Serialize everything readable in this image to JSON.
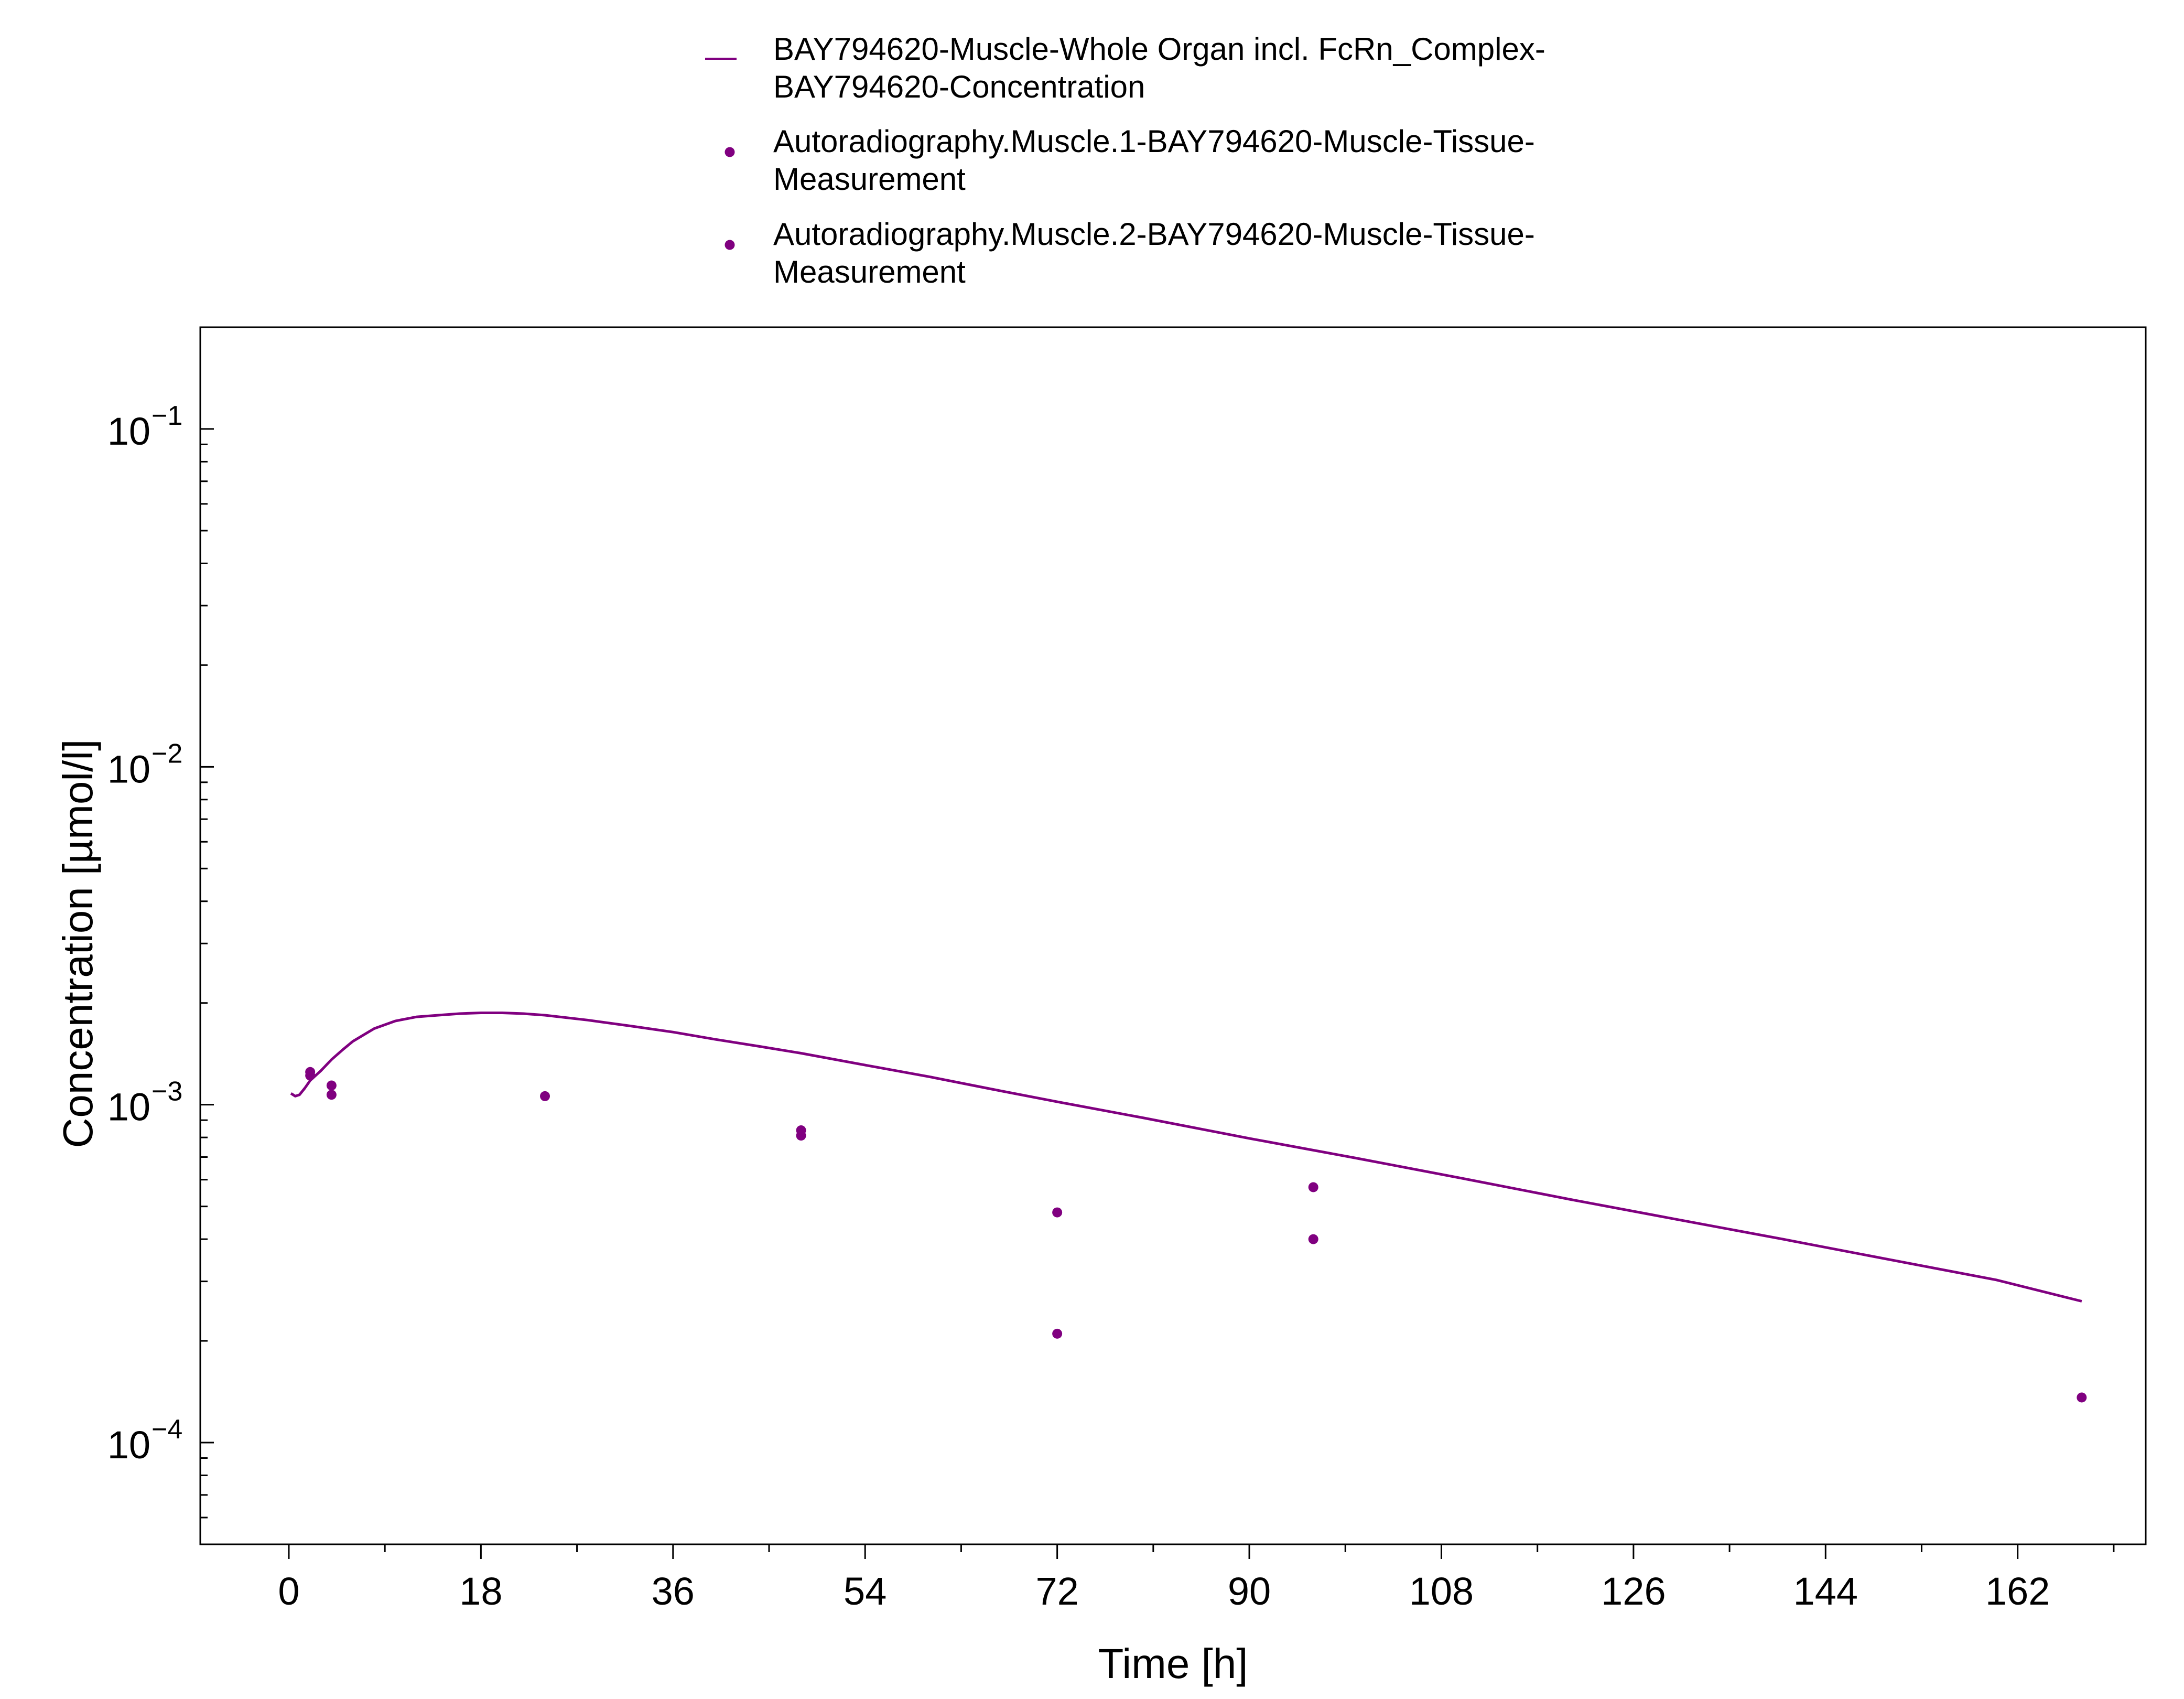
{
  "chart_data": {
    "type": "scatter",
    "xlabel": "Time [h]",
    "ylabel": "Concentration [µmol/l]",
    "xlim": [
      -8.3,
      174
    ],
    "ylim": [
      5e-05,
      0.2
    ],
    "yscale": "log",
    "grid": false,
    "legend_position": "top-center",
    "x_ticks": [
      0,
      18,
      36,
      54,
      72,
      90,
      108,
      126,
      144,
      162
    ],
    "y_ticks": [
      {
        "value": 0.1,
        "base": "10",
        "exp": "−1"
      },
      {
        "value": 0.01,
        "base": "10",
        "exp": "−2"
      },
      {
        "value": 0.001,
        "base": "10",
        "exp": "−3"
      },
      {
        "value": 0.0001,
        "base": "10",
        "exp": "−4"
      }
    ],
    "series": [
      {
        "name": "BAY794620-Muscle-Whole Organ incl. FcRn_Complex-BAY794620-Concentration",
        "legend_lines": [
          "BAY794620-Muscle-Whole Organ incl. FcRn_Complex-",
          "BAY794620-Concentration"
        ],
        "kind": "line",
        "color": "#800080",
        "x": [
          0.2,
          0.6,
          1,
          1.5,
          2,
          3,
          4,
          5,
          6,
          8,
          10,
          12,
          14,
          16,
          18,
          20,
          22,
          24,
          28,
          32,
          36,
          40,
          44,
          48,
          54,
          60,
          66,
          72,
          80,
          90,
          100,
          110,
          120,
          130,
          140,
          150,
          160,
          168
        ],
        "y": [
          0.00108,
          0.00106,
          0.00107,
          0.00112,
          0.00118,
          0.00126,
          0.00136,
          0.00145,
          0.00154,
          0.00168,
          0.00177,
          0.00182,
          0.00184,
          0.00186,
          0.00187,
          0.00187,
          0.00186,
          0.00184,
          0.00178,
          0.00171,
          0.00164,
          0.00156,
          0.00149,
          0.00142,
          0.00131,
          0.00121,
          0.00111,
          0.00102,
          0.000915,
          0.000795,
          0.000695,
          0.000605,
          0.000525,
          0.000458,
          0.0004,
          0.000348,
          0.000303,
          0.000262
        ]
      },
      {
        "name": "Autoradiography.Muscle.1-BAY794620-Muscle-Tissue-Measurement",
        "legend_lines": [
          "Autoradiography.Muscle.1-BAY794620-Muscle-Tissue-",
          "Measurement"
        ],
        "kind": "scatter",
        "color": "#800080",
        "x": [
          2,
          4,
          24,
          48,
          72,
          96,
          168
        ],
        "y": [
          0.00125,
          0.00114,
          0.00106,
          0.00084,
          0.00048,
          0.00057,
          0.000136
        ]
      },
      {
        "name": "Autoradiography.Muscle.2-BAY794620-Muscle-Tissue-Measurement",
        "legend_lines": [
          "Autoradiography.Muscle.2-BAY794620-Muscle-Tissue-",
          "Measurement"
        ],
        "kind": "scatter",
        "color": "#800080",
        "x": [
          2,
          4,
          48,
          72,
          96
        ],
        "y": [
          0.00122,
          0.00107,
          0.00081,
          0.00021,
          0.0004
        ]
      }
    ]
  }
}
